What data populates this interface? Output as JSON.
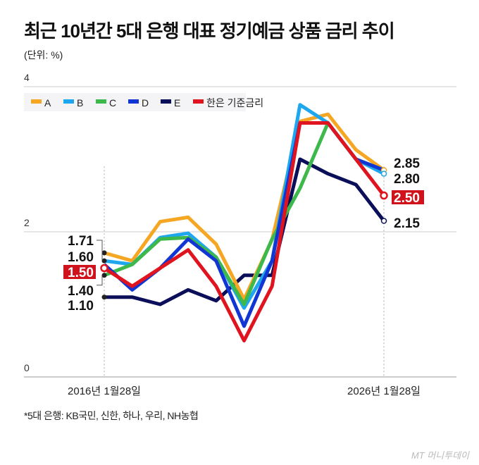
{
  "title": "최근 10년간 5대 은행 대표 정기예금 상품 금리 추이",
  "unit": "(단위: %)",
  "note": "*5대 은행: KB국민, 신한, 하나, 우리, NH농협",
  "logo": "MT 머니투데이",
  "chart_data": {
    "type": "line",
    "title": "최근 10년간 5대 은행 대표 정기예금 상품 금리 추이",
    "ylabel": "(단위: %)",
    "ylim": [
      0,
      4
    ],
    "yticks": [
      "0",
      "2",
      "4"
    ],
    "x_labels": [
      "2016년 1월28일",
      "2026년 1월28일"
    ],
    "x": [
      2016,
      2017,
      2018,
      2019,
      2020,
      2021,
      2022,
      2023,
      2024,
      2025,
      2026
    ],
    "legend_position": "top-left",
    "grid": true,
    "series": [
      {
        "name": "A",
        "color": "#f5a623",
        "values": [
          1.71,
          1.6,
          2.14,
          2.2,
          1.83,
          1.07,
          1.89,
          3.52,
          3.62,
          3.13,
          2.85
        ]
      },
      {
        "name": "B",
        "color": "#1ea7ef",
        "values": [
          1.6,
          1.55,
          1.92,
          1.98,
          1.65,
          0.95,
          1.6,
          3.75,
          3.5,
          3.0,
          2.8
        ]
      },
      {
        "name": "C",
        "color": "#3cb94a",
        "values": [
          1.4,
          1.55,
          1.9,
          1.92,
          1.65,
          1.0,
          1.9,
          2.6,
          3.5,
          3.0,
          2.85
        ]
      },
      {
        "name": "D",
        "color": "#1136d4",
        "values": [
          1.55,
          1.2,
          1.5,
          1.9,
          1.6,
          0.7,
          1.6,
          3.5,
          3.5,
          3.0,
          2.85
        ]
      },
      {
        "name": "E",
        "color": "#0b0f5a",
        "values": [
          1.1,
          1.1,
          1.0,
          1.2,
          1.05,
          1.4,
          1.4,
          3.0,
          2.8,
          2.65,
          2.15
        ]
      },
      {
        "name": "한은 기준금리",
        "color": "#e0141e",
        "values": [
          1.5,
          1.25,
          1.5,
          1.75,
          1.25,
          0.5,
          1.25,
          3.5,
          3.5,
          3.0,
          2.5
        ]
      }
    ],
    "start_labels": [
      "1.71",
      "1.60",
      "1.50",
      "1.40",
      "1.10"
    ],
    "end_labels": [
      "2.85",
      "2.80",
      "2.50",
      "2.15"
    ]
  }
}
